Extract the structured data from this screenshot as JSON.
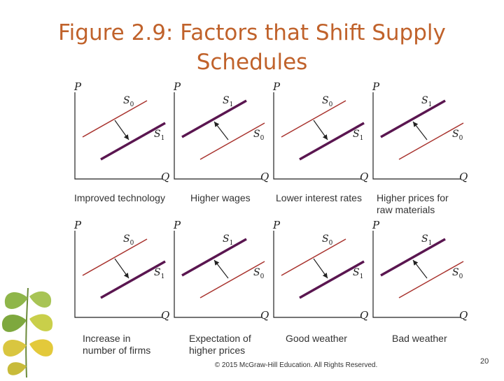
{
  "title": {
    "line1": "Figure 2.9: Factors that Shift Supply",
    "line2": "Schedules"
  },
  "axes": {
    "y_label": "P",
    "x_label": "Q"
  },
  "curve_labels": {
    "letter": "S",
    "initial_sub": "0",
    "shifted_sub": "1"
  },
  "panels": [
    {
      "direction": "right",
      "caption": [
        "Improved technology"
      ]
    },
    {
      "direction": "left",
      "caption": [
        "Higher wages"
      ]
    },
    {
      "direction": "right",
      "caption": [
        "Lower interest rates"
      ]
    },
    {
      "direction": "left",
      "caption": [
        "Higher prices for",
        "raw materials"
      ]
    },
    {
      "direction": "right",
      "caption": [
        "Increase in",
        "number of firms"
      ]
    },
    {
      "direction": "left",
      "caption": [
        "Expectation of",
        "higher prices"
      ]
    },
    {
      "direction": "right",
      "caption": [
        "Good weather"
      ]
    },
    {
      "direction": "left",
      "caption": [
        "Bad weather"
      ]
    }
  ],
  "footer": "© 2015 McGraw-Hill Education. All Rights Reserved.",
  "page_number": "20",
  "colors": {
    "title": "#c0622b",
    "thin_curve": "#a8322d",
    "thick_curve": "#5a1650",
    "axis": "#222222"
  },
  "icons": [
    "ginkgo-leaves-icon"
  ]
}
